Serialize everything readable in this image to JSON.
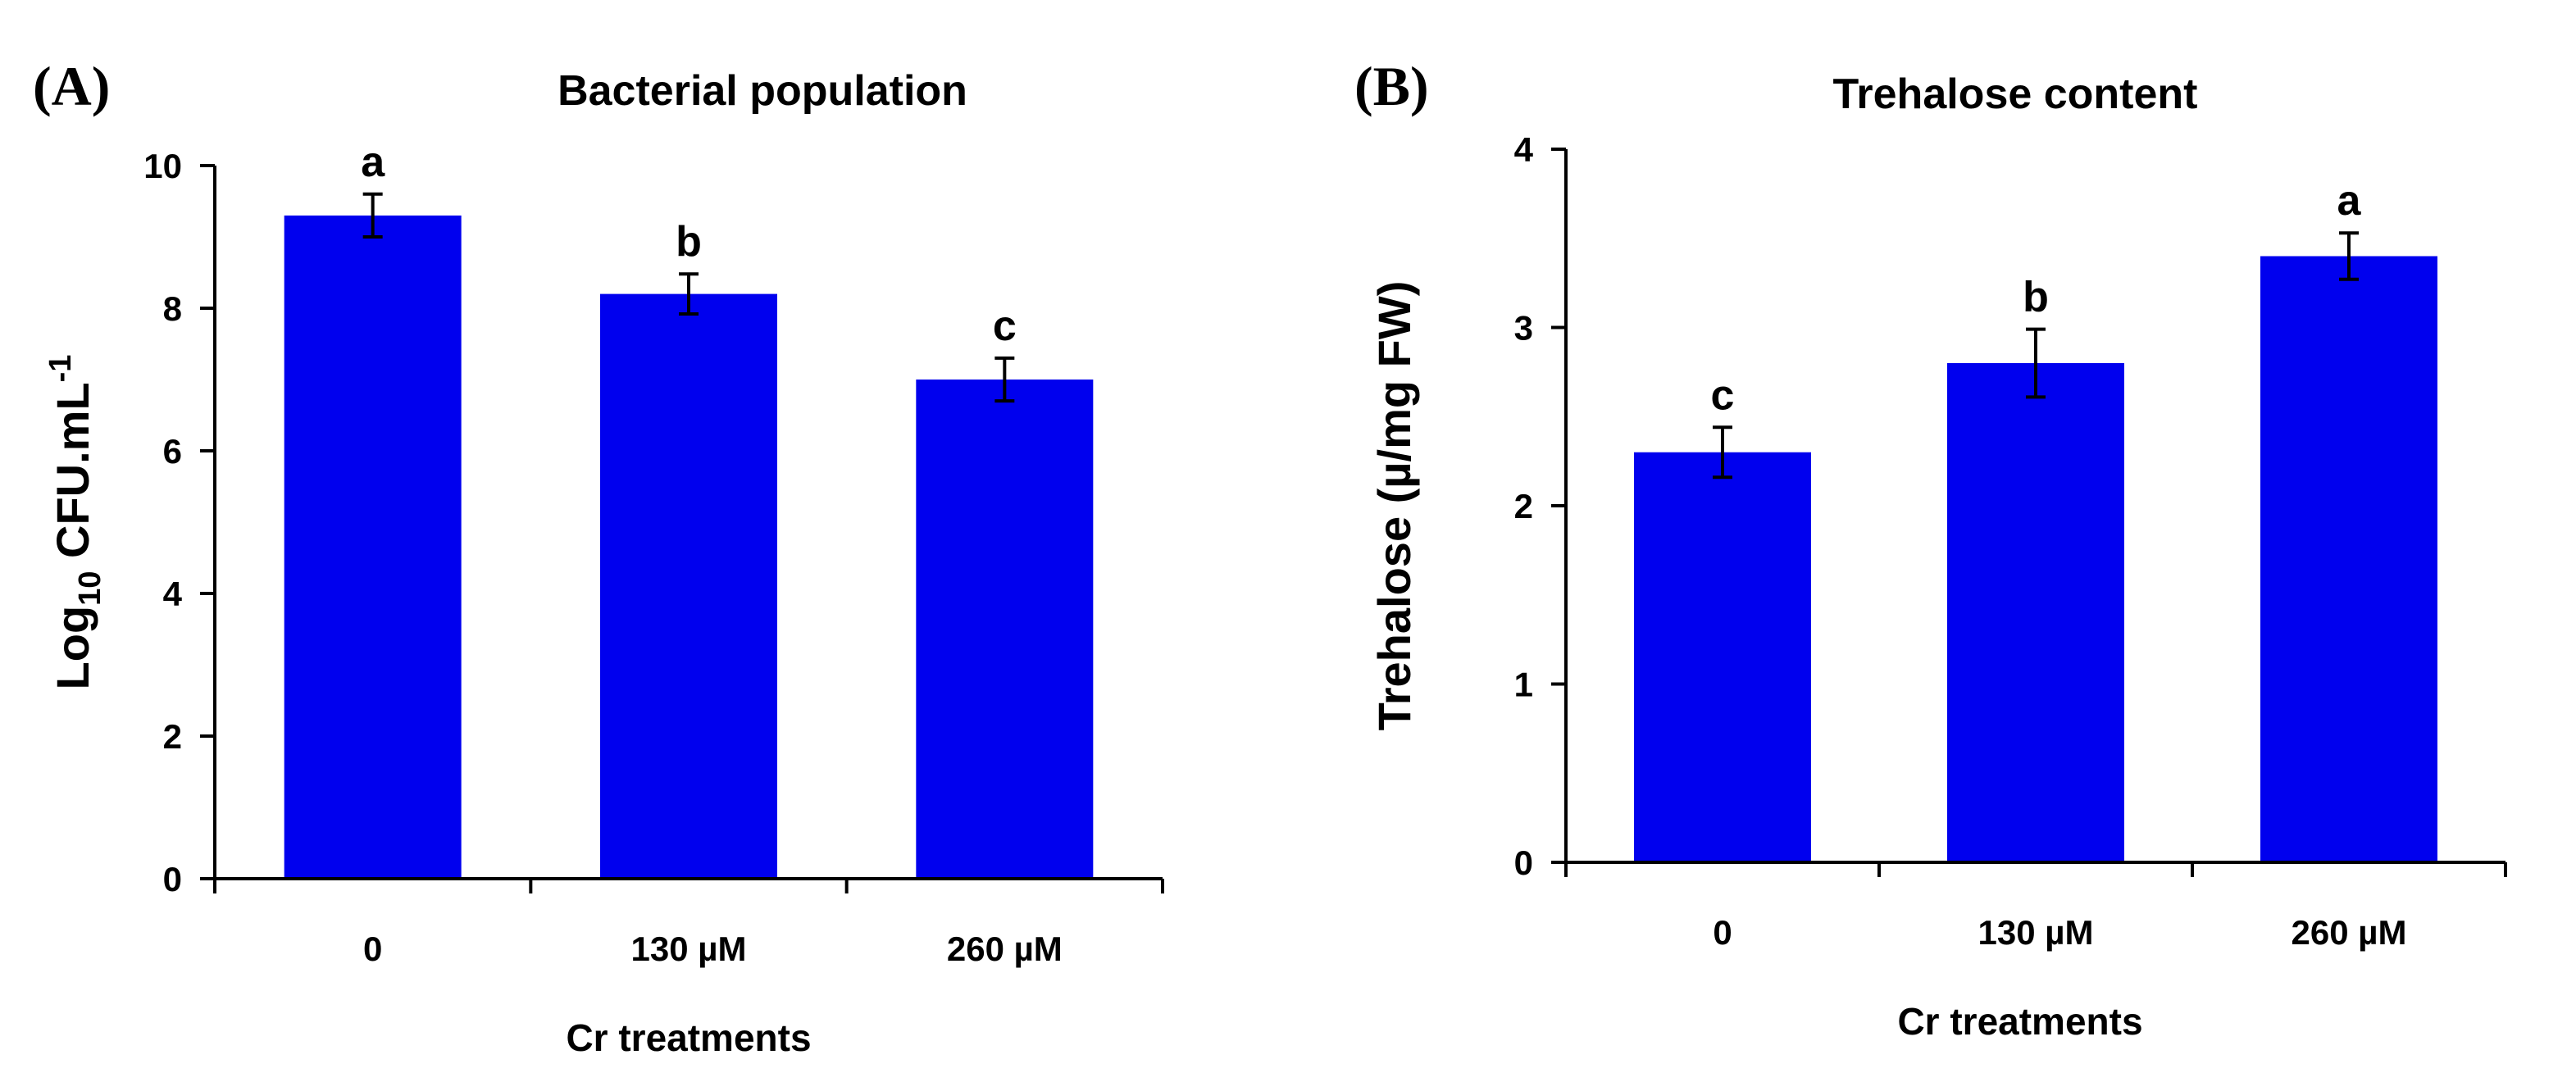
{
  "chart_data": [
    {
      "type": "bar",
      "panel_label": "(A)",
      "title": "Bacterial population",
      "xlabel": "Cr treatments",
      "ylabel": {
        "main": "Log",
        "sub": "10",
        "rest": " CFU.mL",
        "sup": "-1"
      },
      "categories": [
        "0",
        "130 µM",
        "260 µM"
      ],
      "values": [
        9.3,
        8.2,
        7.0
      ],
      "errors": [
        0.3,
        0.28,
        0.3
      ],
      "significance": [
        "a",
        "b",
        "c"
      ],
      "ylim": [
        0,
        10
      ],
      "yticks": [
        0,
        2,
        4,
        6,
        8,
        10
      ],
      "bar_color": "#0000EE"
    },
    {
      "type": "bar",
      "panel_label": "(B)",
      "title": "Trehalose content",
      "xlabel": "Cr treatments",
      "ylabel": {
        "main": "Trehalose (µ/mg FW)",
        "sub": "",
        "rest": "",
        "sup": ""
      },
      "categories": [
        "0",
        "130 µM",
        "260 µM"
      ],
      "values": [
        2.3,
        2.8,
        3.4
      ],
      "errors": [
        0.14,
        0.19,
        0.13
      ],
      "significance": [
        "c",
        "b",
        "a"
      ],
      "ylim": [
        0,
        4
      ],
      "yticks": [
        0,
        1,
        2,
        3,
        4
      ],
      "bar_color": "#0000EE"
    }
  ]
}
